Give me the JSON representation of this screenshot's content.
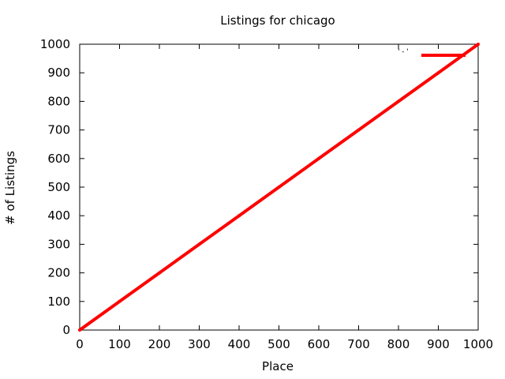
{
  "chart_data": {
    "type": "line",
    "title": "Listings for chicago",
    "xlabel": "Place",
    "ylabel": "# of Listings",
    "xlim": [
      0,
      1000
    ],
    "ylim": [
      0,
      1000
    ],
    "x_ticks": [
      0,
      100,
      200,
      300,
      400,
      500,
      600,
      700,
      800,
      900,
      1000
    ],
    "y_ticks": [
      0,
      100,
      200,
      300,
      400,
      500,
      600,
      700,
      800,
      900,
      1000
    ],
    "grid": false,
    "legend_position": "top-right",
    "series": [
      {
        "name": "'-'",
        "color": "#ff0000",
        "x": [
          0,
          100,
          200,
          300,
          400,
          500,
          600,
          700,
          800,
          900,
          1000
        ],
        "y": [
          0,
          100,
          200,
          300,
          400,
          500,
          600,
          700,
          800,
          900,
          1000
        ]
      }
    ]
  }
}
